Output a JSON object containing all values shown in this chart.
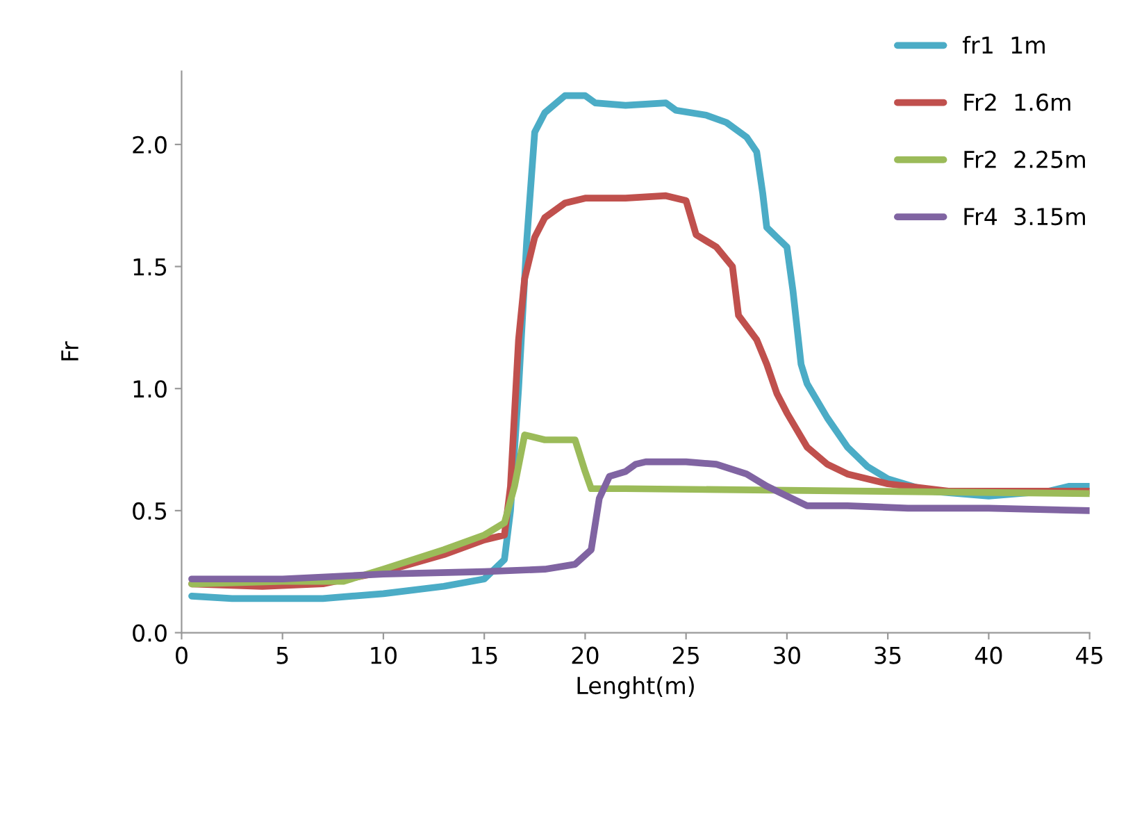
{
  "chart_data": {
    "type": "line",
    "xlabel": "Lenght(m)",
    "ylabel": "Fr",
    "xlim": [
      0,
      45
    ],
    "xticks": [
      0,
      5,
      10,
      15,
      20,
      25,
      30,
      35,
      40,
      45
    ],
    "ylim": [
      0,
      2.3
    ],
    "yticks": [
      {
        "value": 0,
        "label": "0.0"
      },
      {
        "value": 0.5,
        "label": "0.5"
      },
      {
        "value": 1,
        "label": "1.0"
      },
      {
        "value": 1.5,
        "label": "1.5"
      },
      {
        "value": 2,
        "label": "2.0"
      }
    ],
    "grid": false,
    "legend": "top right",
    "marker": "none",
    "line_style": "solid",
    "series": [
      {
        "name": "fr1  1m",
        "color": "#4bacc6",
        "x": [
          0.5,
          2.5,
          7,
          10,
          13,
          15,
          15.5,
          16,
          16.3,
          16.7,
          17.1,
          17.5,
          18,
          19,
          20,
          20.5,
          22,
          24,
          24.5,
          26,
          27,
          28,
          28.5,
          28.8,
          29,
          29.5,
          30,
          30.3,
          30.7,
          31,
          32,
          33,
          34,
          35,
          37,
          40,
          43,
          44,
          45
        ],
        "values": [
          0.15,
          0.14,
          0.14,
          0.16,
          0.19,
          0.22,
          0.26,
          0.3,
          0.5,
          1.0,
          1.6,
          2.05,
          2.13,
          2.2,
          2.2,
          2.17,
          2.16,
          2.17,
          2.14,
          2.12,
          2.09,
          2.03,
          1.97,
          1.8,
          1.66,
          1.62,
          1.58,
          1.4,
          1.1,
          1.02,
          0.88,
          0.76,
          0.68,
          0.63,
          0.58,
          0.56,
          0.58,
          0.6,
          0.6
        ]
      },
      {
        "name": "Fr2  1.6m",
        "color": "#c0504d",
        "x": [
          0.5,
          4,
          7,
          10,
          13,
          15,
          16,
          16.3,
          16.7,
          17,
          17.5,
          18,
          19,
          20,
          22,
          24,
          25,
          25.5,
          26.5,
          27.3,
          27.6,
          28.5,
          29,
          29.5,
          30,
          31,
          32,
          33,
          35,
          38,
          45
        ],
        "values": [
          0.2,
          0.19,
          0.2,
          0.25,
          0.32,
          0.38,
          0.4,
          0.6,
          1.2,
          1.45,
          1.62,
          1.7,
          1.76,
          1.78,
          1.78,
          1.79,
          1.77,
          1.63,
          1.58,
          1.5,
          1.3,
          1.2,
          1.1,
          0.98,
          0.9,
          0.76,
          0.69,
          0.65,
          0.61,
          0.58,
          0.58
        ]
      },
      {
        "name": "Fr2  2.25m",
        "color": "#9bbb59",
        "x": [
          0.5,
          5,
          8,
          10,
          13,
          15,
          16,
          16.5,
          17,
          18,
          19.5,
          20,
          20.3,
          22,
          45
        ],
        "values": [
          0.2,
          0.21,
          0.21,
          0.26,
          0.34,
          0.4,
          0.45,
          0.6,
          0.81,
          0.79,
          0.79,
          0.66,
          0.59,
          0.59,
          0.57
        ]
      },
      {
        "name": "Fr4  3.15m",
        "color": "#8064a2",
        "x": [
          0.5,
          5,
          10,
          15,
          18,
          19.5,
          20.3,
          20.7,
          21.2,
          22,
          22.5,
          23,
          25,
          26.5,
          28,
          29,
          30,
          31,
          33,
          36,
          40,
          45
        ],
        "values": [
          0.22,
          0.22,
          0.24,
          0.25,
          0.26,
          0.28,
          0.34,
          0.55,
          0.64,
          0.66,
          0.69,
          0.7,
          0.7,
          0.69,
          0.65,
          0.6,
          0.56,
          0.52,
          0.52,
          0.51,
          0.51,
          0.5
        ]
      }
    ]
  }
}
